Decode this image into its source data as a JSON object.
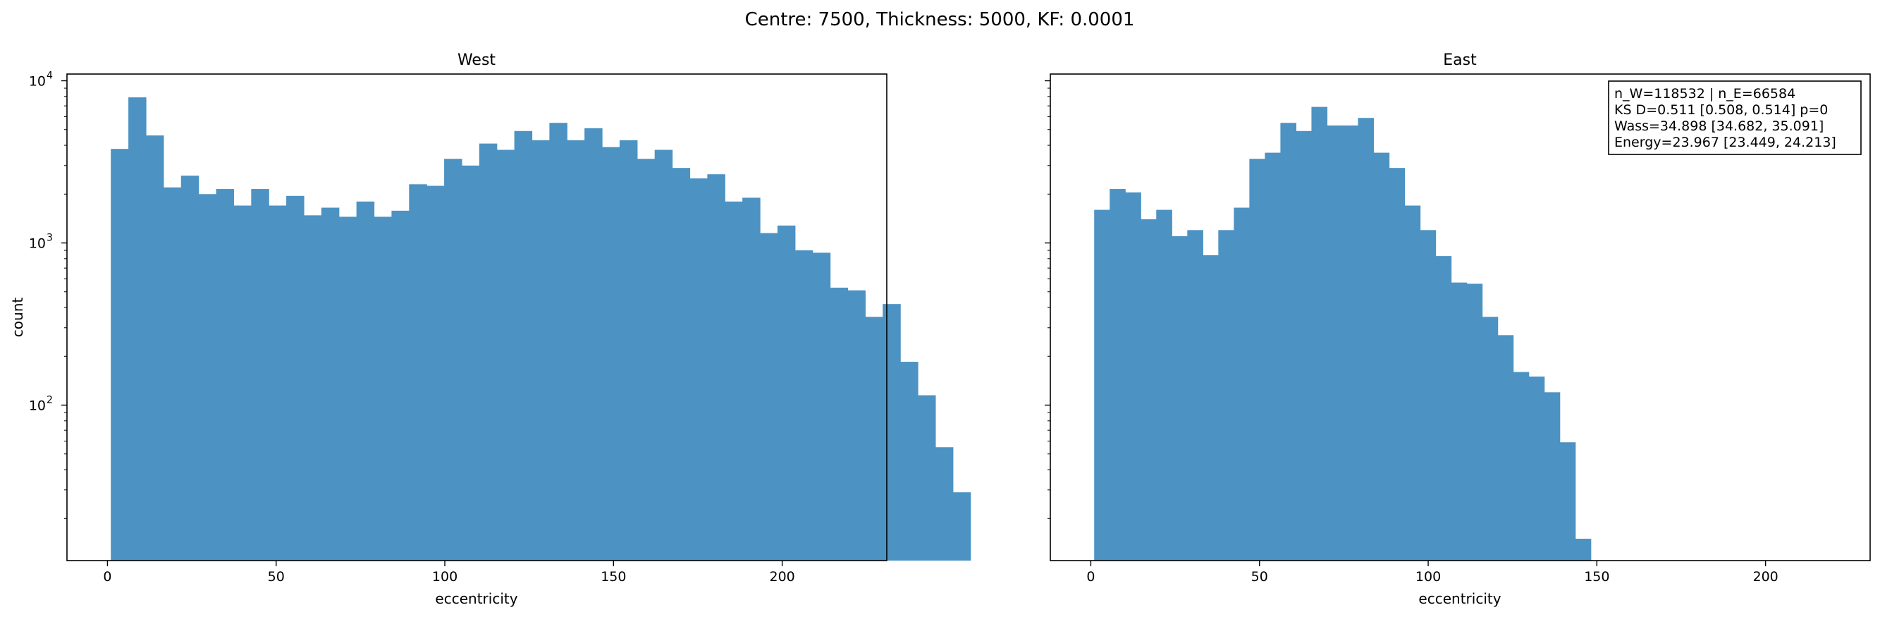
{
  "figure": {
    "suptitle": "Centre: 7500, Thickness: 5000, KF: 0.0001"
  },
  "chart_data": [
    {
      "type": "bar",
      "subtype": "histogram",
      "title": "West",
      "xlabel": "eccentricity",
      "ylabel": "count",
      "yscale": "log",
      "xlim": [
        -12,
        231
      ],
      "ylim": [
        11,
        11000
      ],
      "xticks": [
        0,
        50,
        100,
        150,
        200
      ],
      "yticks": [
        {
          "value": 100,
          "label": "10",
          "exp": "2"
        },
        {
          "value": 1000,
          "label": "10",
          "exp": "3"
        },
        {
          "value": 10000,
          "label": "10",
          "exp": "4"
        }
      ],
      "color": "#4c92c3",
      "bin_start": 1,
      "bin_width": 5.2,
      "values": [
        3800,
        7900,
        4600,
        2200,
        2600,
        2000,
        2150,
        1700,
        2150,
        1700,
        1950,
        1480,
        1650,
        1450,
        1800,
        1450,
        1580,
        2300,
        2250,
        3300,
        3000,
        4100,
        3750,
        4900,
        4300,
        5500,
        4300,
        5100,
        3900,
        4300,
        3300,
        3750,
        2900,
        2500,
        2650,
        1800,
        1900,
        1150,
        1280,
        900,
        870,
        530,
        510,
        350,
        420,
        185,
        115,
        55,
        29
      ]
    },
    {
      "type": "bar",
      "subtype": "histogram",
      "title": "East",
      "xlabel": "eccentricity",
      "ylabel": "",
      "yscale": "log",
      "xlim": [
        -12,
        231
      ],
      "ylim": [
        11,
        11000
      ],
      "xticks": [
        0,
        50,
        100,
        150,
        200
      ],
      "yticks": [
        {
          "value": 100,
          "label": "",
          "exp": ""
        },
        {
          "value": 1000,
          "label": "",
          "exp": ""
        },
        {
          "value": 10000,
          "label": "",
          "exp": ""
        }
      ],
      "color": "#4c92c3",
      "bin_start": 1,
      "bin_width": 4.6,
      "values": [
        1600,
        2150,
        2050,
        1400,
        1600,
        1100,
        1200,
        840,
        1200,
        1650,
        3300,
        3600,
        5500,
        4900,
        6900,
        5300,
        5300,
        5900,
        3600,
        2900,
        1700,
        1200,
        830,
        570,
        560,
        350,
        270,
        160,
        150,
        120,
        59,
        15
      ],
      "annotation": [
        "n_W=118532 | n_E=66584",
        "KS D=0.511 [0.508, 0.514]  p=0",
        "Wass=34.898 [34.682, 35.091]",
        "Energy=23.967 [23.449, 24.213]"
      ]
    }
  ]
}
